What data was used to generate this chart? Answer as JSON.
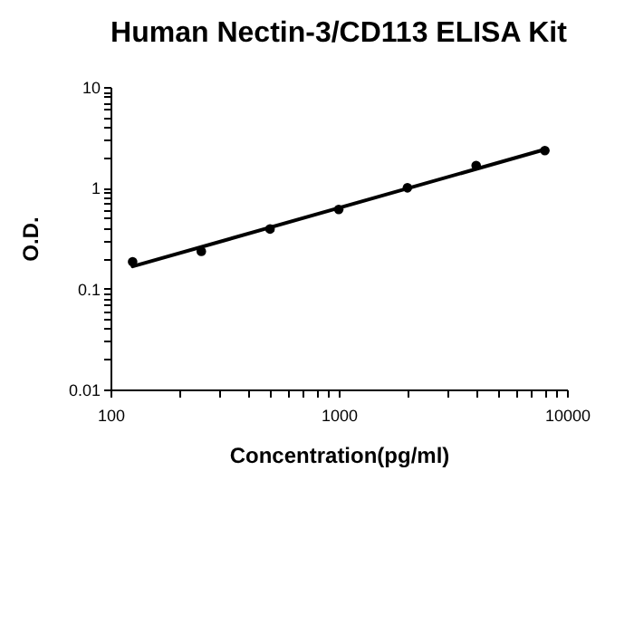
{
  "chart_data": {
    "type": "scatter",
    "title": "Human Nectin-3/CD113 ELISA Kit",
    "xlabel": "Concentration(pg/ml)",
    "ylabel": "O.D.",
    "log": "xy",
    "grid": false,
    "marker": "circle",
    "xlim": [
      100,
      10000
    ],
    "ylim": [
      0.01,
      10
    ],
    "xticks": [
      100,
      {
        "value": 200,
        "label": null
      },
      {
        "value": 300,
        "label": null
      },
      {
        "value": 400,
        "label": null
      },
      {
        "value": 500,
        "label": null
      },
      {
        "value": 600,
        "label": null
      },
      {
        "value": 700,
        "label": null
      },
      {
        "value": 800,
        "label": null
      },
      {
        "value": 900,
        "label": null
      },
      1000,
      {
        "value": 2000,
        "label": null
      },
      {
        "value": 3000,
        "label": null
      },
      {
        "value": 4000,
        "label": null
      },
      {
        "value": 5000,
        "label": null
      },
      {
        "value": 6000,
        "label": null
      },
      {
        "value": 7000,
        "label": null
      },
      {
        "value": 8000,
        "label": null
      },
      {
        "value": 9000,
        "label": null
      },
      10000
    ],
    "yticks": [
      0.01,
      {
        "value": 0.02,
        "label": null
      },
      {
        "value": 0.03,
        "label": null
      },
      {
        "value": 0.04,
        "label": null
      },
      {
        "value": 0.05,
        "label": null
      },
      {
        "value": 0.06,
        "label": null
      },
      {
        "value": 0.07,
        "label": null
      },
      {
        "value": 0.08,
        "label": null
      },
      {
        "value": 0.09,
        "label": null
      },
      0.1,
      {
        "value": 0.2,
        "label": null
      },
      {
        "value": 0.3,
        "label": null
      },
      {
        "value": 0.4,
        "label": null
      },
      {
        "value": 0.5,
        "label": null
      },
      {
        "value": 0.6,
        "label": null
      },
      {
        "value": 0.7,
        "label": null
      },
      {
        "value": 0.8,
        "label": null
      },
      {
        "value": 0.9,
        "label": null
      },
      1,
      {
        "value": 2,
        "label": null
      },
      {
        "value": 3,
        "label": null
      },
      {
        "value": 4,
        "label": null
      },
      {
        "value": 5,
        "label": null
      },
      {
        "value": 6,
        "label": null
      },
      {
        "value": 7,
        "label": null
      },
      {
        "value": 8,
        "label": null
      },
      {
        "value": 9,
        "label": null
      },
      10
    ],
    "series": [
      {
        "type": "scatter",
        "color": "#000000",
        "x": [
          125,
          250,
          500,
          1000,
          2000,
          4000,
          8000
        ],
        "values": [
          0.185,
          0.234,
          0.39,
          0.61,
          1.0,
          1.66,
          2.34
        ]
      },
      {
        "type": "line",
        "color": "#000000",
        "marker": "none",
        "x": [
          125,
          8000
        ],
        "values": [
          0.166,
          2.4
        ]
      }
    ]
  }
}
